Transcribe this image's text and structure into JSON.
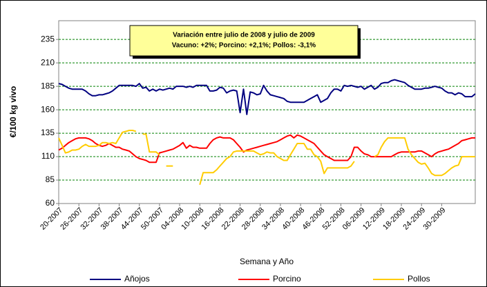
{
  "chart_data": {
    "type": "line",
    "annotations": [
      "Variación entre julio de 2008 y julio de 2009",
      "Vacuno: +2%; Porcino:  +2,1%; Pollos:  -3,1%"
    ],
    "xlabel": "Semana y Año",
    "ylabel": "€/100 kg vivo",
    "ylim": [
      60,
      255
    ],
    "yticks": [
      60,
      85,
      110,
      135,
      160,
      185,
      210,
      235
    ],
    "grid": true,
    "legend": "bottom",
    "categories": [
      "20-2007",
      null,
      null,
      null,
      null,
      null,
      "26-2007",
      null,
      null,
      null,
      null,
      null,
      "32-2007",
      null,
      null,
      null,
      null,
      null,
      "38-2007",
      null,
      null,
      null,
      null,
      null,
      "44-2007",
      null,
      null,
      null,
      null,
      null,
      "50-2007",
      null,
      null,
      null,
      null,
      null,
      "04-2008",
      null,
      null,
      null,
      null,
      null,
      "10-2008",
      null,
      null,
      null,
      null,
      null,
      "16-2008",
      null,
      null,
      null,
      null,
      null,
      "22-2008",
      null,
      null,
      null,
      null,
      null,
      "28-2008",
      null,
      null,
      null,
      null,
      null,
      "34-2008",
      null,
      null,
      null,
      null,
      null,
      "40-2008",
      null,
      null,
      null,
      null,
      null,
      "46-2008",
      null,
      null,
      null,
      null,
      null,
      "52-2008",
      null,
      null,
      null,
      null,
      null,
      "06-2009",
      null,
      null,
      null,
      null,
      null,
      "12-2009",
      null,
      null,
      null,
      null,
      null,
      "18-2009",
      null,
      null,
      null,
      null,
      null,
      "24-2009",
      null,
      null,
      null,
      null,
      null,
      "30-2009",
      null,
      null,
      null,
      null,
      null,
      null,
      null,
      null,
      null,
      null
    ],
    "series": [
      {
        "name": "Añojos",
        "color": "#000080",
        "values": [
          188,
          187,
          185,
          183,
          182,
          182,
          182,
          182,
          180,
          177,
          175,
          175,
          176,
          176,
          177,
          178,
          180,
          183,
          186,
          186,
          186,
          186,
          186,
          185,
          188,
          183,
          184,
          180,
          182,
          180,
          182,
          181,
          182,
          183,
          182,
          185,
          185,
          185,
          184,
          185,
          184,
          186,
          186,
          186,
          186,
          180,
          180,
          181,
          184,
          183,
          178,
          180,
          181,
          180,
          157,
          182,
          155,
          179,
          178,
          176,
          177,
          186,
          180,
          176,
          175,
          174,
          173,
          172,
          169,
          168,
          168,
          168,
          168,
          168,
          170,
          172,
          174,
          176,
          168,
          170,
          172,
          178,
          182,
          182,
          180,
          186,
          185,
          186,
          185,
          184,
          185,
          182,
          184,
          186,
          182,
          184,
          188,
          189,
          189,
          191,
          192,
          191,
          190,
          189,
          186,
          184,
          182,
          182,
          182,
          183,
          183,
          184,
          185,
          184,
          183,
          180,
          178,
          178,
          176,
          178,
          177,
          174,
          174,
          174,
          177
        ]
      },
      {
        "name": "Porcino",
        "color": "#ff0000",
        "values": [
          117,
          119,
          122,
          125,
          127,
          129,
          130,
          130,
          130,
          129,
          127,
          124,
          122,
          121,
          122,
          124,
          122,
          120,
          120,
          118,
          117,
          116,
          113,
          110,
          108,
          107,
          106,
          104,
          104,
          104,
          114,
          115,
          116,
          117,
          118,
          120,
          122,
          125,
          119,
          122,
          120,
          120,
          119,
          119,
          119,
          124,
          128,
          130,
          131,
          130,
          130,
          130,
          128,
          124,
          120,
          115,
          117,
          118,
          119,
          120,
          121,
          122,
          123,
          124,
          125,
          126,
          128,
          130,
          132,
          133,
          130,
          133,
          132,
          130,
          128,
          126,
          124,
          120,
          116,
          112,
          110,
          108,
          106,
          106,
          106,
          106,
          106,
          110,
          120,
          120,
          116,
          113,
          112,
          110,
          110,
          110,
          110,
          110,
          110,
          110,
          112,
          114,
          115,
          115,
          115,
          115,
          115,
          116,
          116,
          114,
          112,
          110,
          113,
          115,
          116,
          117,
          118,
          120,
          122,
          124,
          127,
          128,
          129,
          130,
          130
        ]
      },
      {
        "name": "Pollos",
        "color": "#ffcc00",
        "values": [
          130,
          122,
          114,
          115,
          117,
          117,
          118,
          121,
          123,
          121,
          121,
          121,
          122,
          125,
          125,
          124,
          125,
          124,
          130,
          136,
          137,
          138,
          138,
          137,
          null,
          134,
          134,
          115,
          115,
          115,
          112,
          null,
          100,
          100,
          100,
          null,
          null,
          null,
          null,
          null,
          null,
          null,
          80,
          93,
          93,
          93,
          93,
          96,
          100,
          104,
          108,
          110,
          115,
          116,
          116,
          116,
          116,
          116,
          116,
          114,
          112,
          113,
          115,
          114,
          114,
          110,
          108,
          106,
          106,
          112,
          118,
          124,
          124,
          124,
          118,
          118,
          112,
          110,
          105,
          92,
          98,
          98,
          98,
          98,
          98,
          98,
          98,
          100,
          105,
          null,
          null,
          null,
          null,
          null,
          110,
          112,
          120,
          126,
          130,
          130,
          130,
          130,
          130,
          130,
          118,
          112,
          108,
          104,
          102,
          103,
          98,
          92,
          90,
          90,
          90,
          92,
          95,
          98,
          100,
          101,
          110,
          110,
          110,
          110,
          110
        ]
      }
    ]
  }
}
